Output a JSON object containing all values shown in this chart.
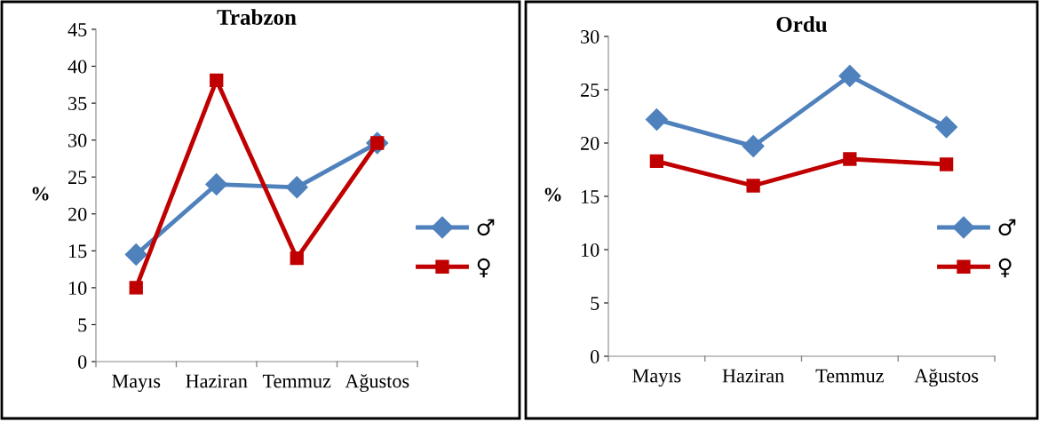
{
  "chart_data": [
    {
      "type": "line",
      "title": "Trabzon",
      "ylabel": "%",
      "categories": [
        "Mayıs",
        "Haziran",
        "Temmuz",
        "Ağustos"
      ],
      "ylim": [
        0,
        45
      ],
      "yticks": [
        0,
        5,
        10,
        15,
        20,
        25,
        30,
        35,
        40,
        45
      ],
      "grid": false,
      "legend": "right",
      "series": [
        {
          "name": "♂",
          "color": "#4f81bd",
          "marker": "diamond",
          "values": [
            14.5,
            24,
            23.6,
            29.6
          ]
        },
        {
          "name": "♀",
          "color": "#c00000",
          "marker": "square",
          "values": [
            10,
            38.1,
            14,
            29.6
          ]
        }
      ]
    },
    {
      "type": "line",
      "title": "Ordu",
      "ylabel": "%",
      "categories": [
        "Mayıs",
        "Haziran",
        "Temmuz",
        "Ağustos"
      ],
      "ylim": [
        0,
        30
      ],
      "yticks": [
        0,
        5,
        10,
        15,
        20,
        25,
        30
      ],
      "grid": false,
      "legend": "right",
      "series": [
        {
          "name": "♂",
          "color": "#4f81bd",
          "marker": "diamond",
          "values": [
            22.2,
            19.7,
            26.3,
            21.5
          ]
        },
        {
          "name": "♀",
          "color": "#c00000",
          "marker": "square",
          "values": [
            18.3,
            16,
            18.5,
            18
          ]
        }
      ]
    }
  ]
}
